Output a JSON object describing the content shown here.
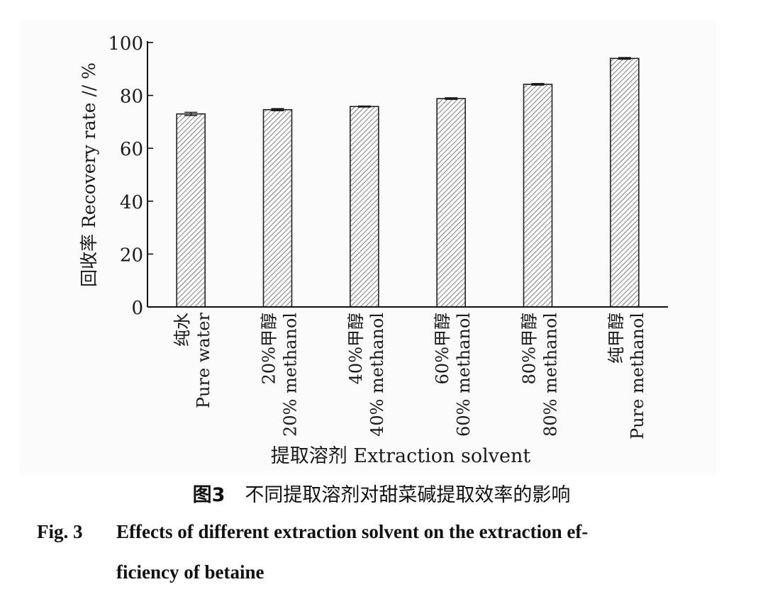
{
  "chart_data": {
    "type": "bar",
    "categories": [
      {
        "cn": "纯水",
        "en": "Pure water"
      },
      {
        "cn": "20%甲醇",
        "en": "20% methanol"
      },
      {
        "cn": "40%甲醇",
        "en": "40% methanol"
      },
      {
        "cn": "60%甲醇",
        "en": "60% methanol"
      },
      {
        "cn": "80%甲醇",
        "en": "80% methanol"
      },
      {
        "cn": "纯甲醇",
        "en": "Pure methanol"
      }
    ],
    "values": [
      73.0,
      74.6,
      75.8,
      78.8,
      84.2,
      94.0
    ],
    "errors": [
      0.6,
      0.4,
      0.2,
      0.3,
      0.3,
      0.3
    ],
    "ylabel": "回收率 Recovery rate // %",
    "xlabel": "提取溶剂 Extraction solvent",
    "ylim": [
      0,
      100
    ],
    "yticks": [
      0,
      20,
      40,
      60,
      80,
      100
    ],
    "bar_fill": "hatched",
    "grid": false
  },
  "caption": {
    "cn_number": "图3",
    "cn_text": "不同提取溶剂对甜菜碱提取效率的影响",
    "en_number": "Fig. 3",
    "en_line1": "Effects of different extraction solvent on the extraction ef-",
    "en_line2": "ficiency of betaine"
  }
}
